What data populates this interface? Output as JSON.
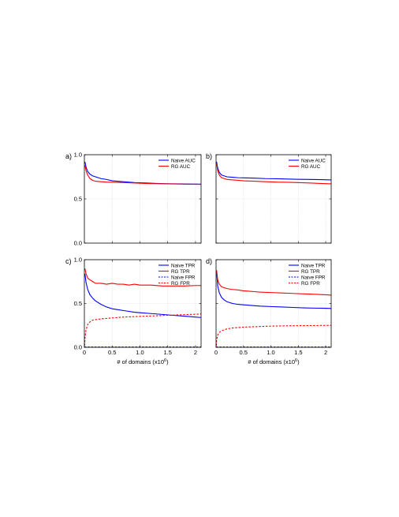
{
  "chart_data": [
    {
      "panel_label": "a)",
      "type": "line",
      "xlabel": "",
      "ylabel": "",
      "xlim": [
        0,
        2.1
      ],
      "ylim": [
        0,
        1.0
      ],
      "xticks": [
        0,
        0.5,
        1.0,
        1.5,
        2
      ],
      "yticks": [
        0.0,
        0.5,
        1.0
      ],
      "xtick_labels": [
        "",
        "",
        "",
        "",
        ""
      ],
      "ytick_labels": [
        "0.0",
        "0.5",
        "1.0"
      ],
      "grid": true,
      "legend_position": "top-right",
      "series": [
        {
          "name": "Naive AUC",
          "color": "#0000ff",
          "style": "solid",
          "x": [
            0.01,
            0.03,
            0.06,
            0.1,
            0.15,
            0.2,
            0.3,
            0.4,
            0.5,
            0.7,
            0.9,
            1.1,
            1.3,
            1.5,
            1.7,
            1.9,
            2.1
          ],
          "y": [
            0.92,
            0.86,
            0.81,
            0.78,
            0.76,
            0.75,
            0.73,
            0.72,
            0.705,
            0.695,
            0.685,
            0.68,
            0.675,
            0.672,
            0.67,
            0.668,
            0.667
          ]
        },
        {
          "name": "RG AUC",
          "color": "#ff0000",
          "style": "solid",
          "x": [
            0.01,
            0.03,
            0.06,
            0.1,
            0.15,
            0.2,
            0.3,
            0.4,
            0.5,
            0.7,
            0.9,
            1.1,
            1.3,
            1.5,
            1.7,
            1.9,
            2.1
          ],
          "y": [
            0.88,
            0.82,
            0.77,
            0.73,
            0.71,
            0.7,
            0.695,
            0.69,
            0.688,
            0.685,
            0.68,
            0.675,
            0.672,
            0.67,
            0.668,
            0.666,
            0.665
          ]
        }
      ]
    },
    {
      "panel_label": "b)",
      "type": "line",
      "xlabel": "",
      "ylabel": "",
      "xlim": [
        0,
        2.1
      ],
      "ylim": [
        0,
        1.0
      ],
      "xticks": [
        0,
        0.5,
        1.0,
        1.5,
        2
      ],
      "yticks": [
        0.0,
        0.5,
        1.0
      ],
      "xtick_labels": [
        "",
        "",
        "",
        "",
        ""
      ],
      "ytick_labels": [
        "",
        "",
        ""
      ],
      "grid": true,
      "legend_position": "top-right",
      "series": [
        {
          "name": "Naive AUC",
          "color": "#0000ff",
          "style": "solid",
          "x": [
            0.01,
            0.03,
            0.06,
            0.1,
            0.15,
            0.2,
            0.3,
            0.4,
            0.5,
            0.7,
            0.9,
            1.1,
            1.3,
            1.5,
            1.7,
            1.9,
            2.1
          ],
          "y": [
            0.92,
            0.85,
            0.8,
            0.77,
            0.76,
            0.75,
            0.745,
            0.74,
            0.738,
            0.735,
            0.73,
            0.728,
            0.725,
            0.722,
            0.72,
            0.718,
            0.715
          ]
        },
        {
          "name": "RG AUC",
          "color": "#ff0000",
          "style": "solid",
          "x": [
            0.01,
            0.03,
            0.06,
            0.1,
            0.15,
            0.2,
            0.3,
            0.4,
            0.5,
            0.7,
            0.9,
            1.1,
            1.3,
            1.5,
            1.7,
            1.9,
            2.1
          ],
          "y": [
            0.9,
            0.82,
            0.77,
            0.74,
            0.73,
            0.72,
            0.715,
            0.71,
            0.705,
            0.7,
            0.695,
            0.69,
            0.688,
            0.685,
            0.68,
            0.675,
            0.67
          ]
        }
      ]
    },
    {
      "panel_label": "c)",
      "type": "line",
      "xlabel": "# of domains (x10",
      "xlabel_sup": "6",
      "xlabel_end": ")",
      "ylabel": "",
      "xlim": [
        0,
        2.1
      ],
      "ylim": [
        0,
        1.0
      ],
      "xticks": [
        0,
        0.5,
        1.0,
        1.5,
        2
      ],
      "yticks": [
        0.0,
        0.5,
        1.0
      ],
      "xtick_labels": [
        "0",
        "0.5",
        "1.0",
        "1.5",
        "2"
      ],
      "ytick_labels": [
        "0.0",
        "0.5",
        "1.0"
      ],
      "grid": true,
      "legend_position": "top-right",
      "series": [
        {
          "name": "Naive TPR",
          "color": "#0000ff",
          "style": "solid",
          "x": [
            0.01,
            0.03,
            0.06,
            0.1,
            0.15,
            0.2,
            0.3,
            0.4,
            0.5,
            0.6,
            0.7,
            0.8,
            0.9,
            1.0,
            1.2,
            1.4,
            1.6,
            1.8,
            2.0,
            2.1
          ],
          "y": [
            0.84,
            0.74,
            0.66,
            0.6,
            0.56,
            0.53,
            0.49,
            0.46,
            0.44,
            0.43,
            0.42,
            0.41,
            0.4,
            0.395,
            0.385,
            0.375,
            0.365,
            0.355,
            0.345,
            0.34
          ]
        },
        {
          "name": "RG TPR",
          "color": "#ff0000",
          "style": "solid",
          "x": [
            0.01,
            0.03,
            0.06,
            0.1,
            0.15,
            0.2,
            0.3,
            0.4,
            0.5,
            0.6,
            0.7,
            0.8,
            0.9,
            1.0,
            1.2,
            1.4,
            1.6,
            1.8,
            2.0,
            2.1
          ],
          "y": [
            0.9,
            0.84,
            0.79,
            0.77,
            0.75,
            0.73,
            0.73,
            0.72,
            0.73,
            0.72,
            0.72,
            0.71,
            0.72,
            0.71,
            0.71,
            0.7,
            0.7,
            0.7,
            0.705,
            0.705
          ]
        },
        {
          "name": "Naive FPR",
          "color": "#0000ff",
          "style": "dashed",
          "x": [
            0.0,
            0.5,
            1.0,
            1.5,
            2.1
          ],
          "y": [
            0.003,
            0.003,
            0.003,
            0.003,
            0.003
          ]
        },
        {
          "name": "RG FPR",
          "color": "#ff0000",
          "style": "dashed",
          "x": [
            0.005,
            0.01,
            0.03,
            0.06,
            0.1,
            0.15,
            0.2,
            0.3,
            0.4,
            0.5,
            0.7,
            0.9,
            1.1,
            1.3,
            1.5,
            1.7,
            1.9,
            2.1
          ],
          "y": [
            0.02,
            0.1,
            0.2,
            0.26,
            0.29,
            0.31,
            0.315,
            0.325,
            0.33,
            0.335,
            0.345,
            0.35,
            0.355,
            0.36,
            0.365,
            0.37,
            0.375,
            0.38
          ]
        }
      ]
    },
    {
      "panel_label": "d)",
      "type": "line",
      "xlabel": "# of domains (x10",
      "xlabel_sup": "6",
      "xlabel_end": ")",
      "ylabel": "",
      "xlim": [
        0,
        2.1
      ],
      "ylim": [
        0,
        1.0
      ],
      "xticks": [
        0,
        0.5,
        1.0,
        1.5,
        2
      ],
      "yticks": [
        0.0,
        0.5,
        1.0
      ],
      "xtick_labels": [
        "0",
        "0.5",
        "1.0",
        "1.5",
        "2"
      ],
      "ytick_labels": [
        "",
        "",
        ""
      ],
      "grid": true,
      "legend_position": "top-right",
      "series": [
        {
          "name": "Naive TPR",
          "color": "#0000ff",
          "style": "solid",
          "x": [
            0.01,
            0.03,
            0.06,
            0.1,
            0.15,
            0.2,
            0.3,
            0.4,
            0.5,
            0.6,
            0.7,
            0.8,
            1.0,
            1.2,
            1.4,
            1.6,
            1.8,
            2.0,
            2.1
          ],
          "y": [
            0.86,
            0.7,
            0.62,
            0.57,
            0.54,
            0.52,
            0.5,
            0.49,
            0.485,
            0.48,
            0.475,
            0.47,
            0.465,
            0.46,
            0.455,
            0.45,
            0.447,
            0.445,
            0.443
          ]
        },
        {
          "name": "RG TPR",
          "color": "#ff0000",
          "style": "solid",
          "x": [
            0.01,
            0.03,
            0.06,
            0.1,
            0.15,
            0.2,
            0.3,
            0.4,
            0.5,
            0.6,
            0.7,
            0.8,
            1.0,
            1.2,
            1.4,
            1.6,
            1.8,
            2.0,
            2.1
          ],
          "y": [
            0.88,
            0.77,
            0.72,
            0.69,
            0.68,
            0.67,
            0.66,
            0.655,
            0.645,
            0.64,
            0.635,
            0.63,
            0.625,
            0.62,
            0.615,
            0.61,
            0.605,
            0.6,
            0.595
          ]
        },
        {
          "name": "Naive FPR",
          "color": "#0000ff",
          "style": "dashed",
          "x": [
            0.0,
            0.5,
            1.0,
            1.5,
            2.1
          ],
          "y": [
            0.003,
            0.003,
            0.003,
            0.003,
            0.003
          ]
        },
        {
          "name": "RG FPR",
          "color": "#ff0000",
          "style": "dashed",
          "x": [
            0.005,
            0.01,
            0.03,
            0.06,
            0.1,
            0.15,
            0.2,
            0.3,
            0.4,
            0.5,
            0.7,
            0.9,
            1.1,
            1.3,
            1.5,
            1.7,
            1.9,
            2.1
          ],
          "y": [
            0.02,
            0.08,
            0.14,
            0.17,
            0.19,
            0.2,
            0.21,
            0.22,
            0.225,
            0.23,
            0.235,
            0.24,
            0.243,
            0.245,
            0.247,
            0.248,
            0.249,
            0.25
          ]
        }
      ]
    }
  ]
}
